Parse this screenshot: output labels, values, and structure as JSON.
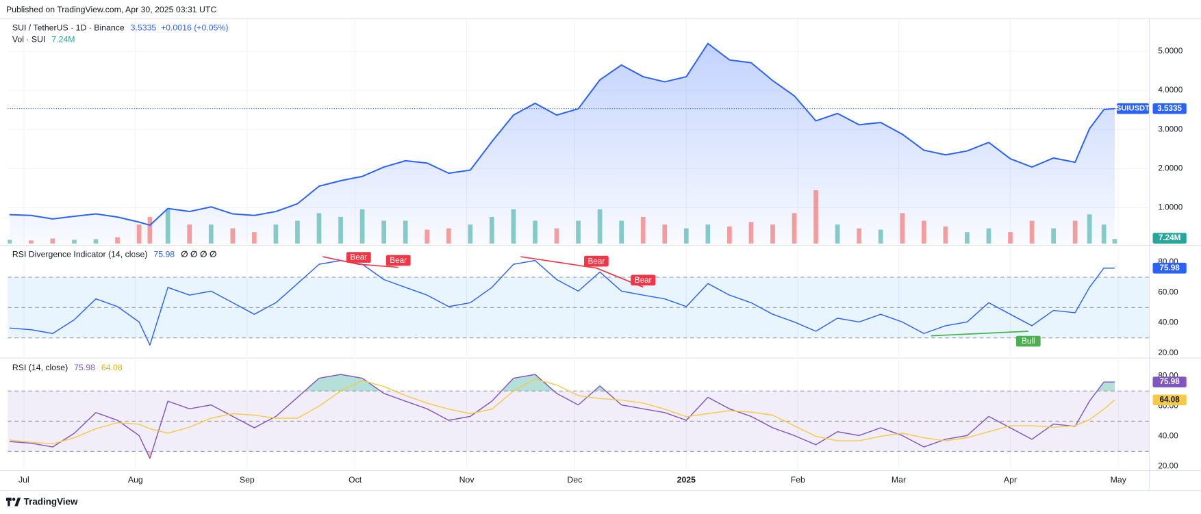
{
  "header": {
    "published": "Published on TradingView.com, Apr 30, 2025 03:31 UTC",
    "brand": "TradingView"
  },
  "chart_data": [
    {
      "type": "line",
      "title": "SUI / TetherUS · 1D · Binance",
      "price_change": "+0.0016 (+0.05%)",
      "volume_label": "7.24M",
      "x": [
        -4,
        2,
        8,
        14,
        20,
        26,
        32,
        35,
        40,
        46,
        52,
        58,
        64,
        70,
        76,
        82,
        88,
        94,
        100,
        106,
        112,
        118,
        124,
        130,
        136,
        142,
        148,
        154,
        160,
        166,
        172,
        178,
        184,
        190,
        196,
        202,
        208,
        214,
        220,
        226,
        232,
        238,
        244,
        250,
        256,
        262,
        268,
        274,
        280,
        286,
        292,
        296,
        300,
        303
      ],
      "xlim": [
        -4.5,
        312.5
      ],
      "xticks": [
        {
          "value": 0,
          "label": "Jul"
        },
        {
          "value": 31,
          "label": "Aug"
        },
        {
          "value": 62,
          "label": "Sep"
        },
        {
          "value": 92,
          "label": "Oct"
        },
        {
          "value": 123,
          "label": "Nov"
        },
        {
          "value": 153,
          "label": "Dec"
        },
        {
          "value": 184,
          "label": "2025",
          "bold": true
        },
        {
          "value": 215,
          "label": "Feb"
        },
        {
          "value": 243,
          "label": "Mar"
        },
        {
          "value": 274,
          "label": "Apr"
        },
        {
          "value": 304,
          "label": "May"
        }
      ],
      "ylim": [
        0.08,
        5.82
      ],
      "yticks": [
        {
          "value": 1,
          "label": "1.0000"
        },
        {
          "value": 2,
          "label": "2.0000"
        },
        {
          "value": 3,
          "label": "3.0000"
        },
        {
          "value": 4,
          "label": "4.0000"
        },
        {
          "value": 5,
          "label": "5.0000"
        }
      ],
      "y2lim": [
        0,
        353
      ],
      "grid": true,
      "series": [
        {
          "name": "SUIUSDT",
          "color": "#2962ff",
          "area": true,
          "values": [
            0.82,
            0.8,
            0.71,
            0.78,
            0.84,
            0.76,
            0.63,
            0.55,
            0.98,
            0.9,
            1.02,
            0.84,
            0.8,
            0.9,
            1.1,
            1.55,
            1.69,
            1.8,
            2.04,
            2.2,
            2.14,
            1.88,
            1.96,
            2.69,
            3.37,
            3.67,
            3.37,
            3.53,
            4.27,
            4.65,
            4.35,
            4.22,
            4.35,
            5.2,
            4.78,
            4.71,
            4.25,
            3.86,
            3.22,
            3.41,
            3.12,
            3.18,
            2.88,
            2.47,
            2.35,
            2.45,
            2.67,
            2.25,
            2.04,
            2.27,
            2.16,
            3.02,
            3.51,
            3.5335
          ]
        },
        {
          "name": "Vol · SUI",
          "type": "bar",
          "axis": "y2",
          "color": "#26a69a",
          "down_color": "#ef5350",
          "values": [
            6,
            5,
            8,
            6,
            7,
            10,
            30,
            42,
            54,
            30,
            30,
            24,
            18,
            30,
            36,
            48,
            42,
            54,
            36,
            36,
            22,
            24,
            30,
            42,
            54,
            36,
            24,
            36,
            54,
            36,
            42,
            30,
            24,
            30,
            27,
            34,
            30,
            48,
            84,
            30,
            24,
            22,
            48,
            36,
            27,
            18,
            24,
            18,
            36,
            24,
            36,
            46,
            30,
            7.24
          ]
        }
      ]
    },
    {
      "type": "line",
      "title": "RSI Divergence Indicator (14, close)",
      "status": "∅ ∅ ∅ ∅",
      "ylim": [
        18,
        89.6
      ],
      "yticks": [
        {
          "value": 20,
          "label": "20.00"
        },
        {
          "value": 40,
          "label": "40.00"
        },
        {
          "value": 60,
          "label": "60.00"
        },
        {
          "value": 80,
          "label": "80.00"
        }
      ],
      "levels": [
        70,
        50,
        30
      ],
      "band": [
        30,
        70
      ],
      "band_color": "#2196f3",
      "series": [
        {
          "color": "#2962ff",
          "values": [
            36.5,
            35.4,
            32.9,
            42,
            55.7,
            50.6,
            40.5,
            25.3,
            63.3,
            58.2,
            60.8,
            53.2,
            45.6,
            53.2,
            65.8,
            78.5,
            81,
            78.5,
            68.4,
            63.3,
            58.2,
            50.6,
            53.2,
            63.3,
            78.5,
            81,
            68.4,
            60.8,
            73.4,
            60.8,
            58.2,
            55.7,
            50.6,
            65.8,
            58.2,
            53.2,
            45.6,
            40.5,
            34.4,
            43,
            40.5,
            45.6,
            40.5,
            32.9,
            38,
            40.5,
            53.2,
            45.6,
            38,
            48.1,
            46.6,
            63.3,
            76,
            75.98
          ]
        }
      ],
      "divergences": [
        {
          "label": "Bear",
          "color": "#f23645",
          "placement": "above",
          "points": [
            [
              83,
              83.5
            ],
            [
              93,
              78.5
            ]
          ]
        },
        {
          "label": "Bear",
          "color": "#f23645",
          "placement": "above",
          "points": [
            [
              93,
              78.5
            ],
            [
              104,
              76.5
            ]
          ]
        },
        {
          "label": "Bear",
          "color": "#f23645",
          "placement": "above",
          "points": [
            [
              138,
              83.5
            ],
            [
              159,
              76
            ]
          ]
        },
        {
          "label": "Bear",
          "color": "#f23645",
          "placement": "above",
          "points": [
            [
              159,
              76
            ],
            [
              172,
              63.5
            ]
          ]
        },
        {
          "label": "Bull",
          "color": "#4caf50",
          "placement": "below",
          "points": [
            [
              252,
              31.4
            ],
            [
              279,
              34.4
            ]
          ]
        }
      ]
    },
    {
      "type": "line",
      "title": "RSI (14, close)",
      "ylim": [
        18.5,
        90.6
      ],
      "yticks": [
        {
          "value": 20,
          "label": "20.00"
        },
        {
          "value": 40,
          "label": "40.00"
        },
        {
          "value": 60,
          "label": "60.00"
        },
        {
          "value": 80,
          "label": "80.00"
        }
      ],
      "levels": [
        70,
        50,
        30
      ],
      "band": [
        30,
        70
      ],
      "band_color": "#7e57c2",
      "overbought_color": "#089981",
      "oversold_color": "#f23645",
      "series": [
        {
          "color": "#7e57c2",
          "values": [
            36.5,
            35.4,
            32.9,
            42,
            55.7,
            50.6,
            40.5,
            25.3,
            63.3,
            58.2,
            60.8,
            53.2,
            45.6,
            53.2,
            65.8,
            78.5,
            81,
            78.5,
            68.4,
            63.3,
            58.2,
            50.6,
            53.2,
            63.3,
            78.5,
            81,
            68.4,
            60.8,
            73.4,
            60.8,
            58.2,
            55.7,
            50.6,
            65.8,
            58.2,
            53.2,
            45.6,
            40.5,
            34.4,
            43,
            40.5,
            45.6,
            40.5,
            32.9,
            38,
            40.5,
            53.2,
            45.6,
            38,
            48.1,
            46.6,
            63.3,
            76,
            75.98
          ]
        },
        {
          "color": "#f7c948",
          "values": [
            37.5,
            36,
            35,
            39,
            45,
            49,
            48,
            45,
            42,
            46,
            52,
            55,
            54,
            52,
            52,
            60,
            70,
            77,
            73,
            67,
            62,
            58,
            55,
            58,
            70,
            78,
            74,
            67,
            65,
            64,
            62,
            58,
            53,
            55,
            57,
            56,
            54,
            47,
            40,
            37,
            37,
            40,
            42,
            39,
            37,
            39,
            43,
            47,
            47,
            46,
            47,
            51,
            58,
            64.08
          ]
        }
      ]
    }
  ]
}
